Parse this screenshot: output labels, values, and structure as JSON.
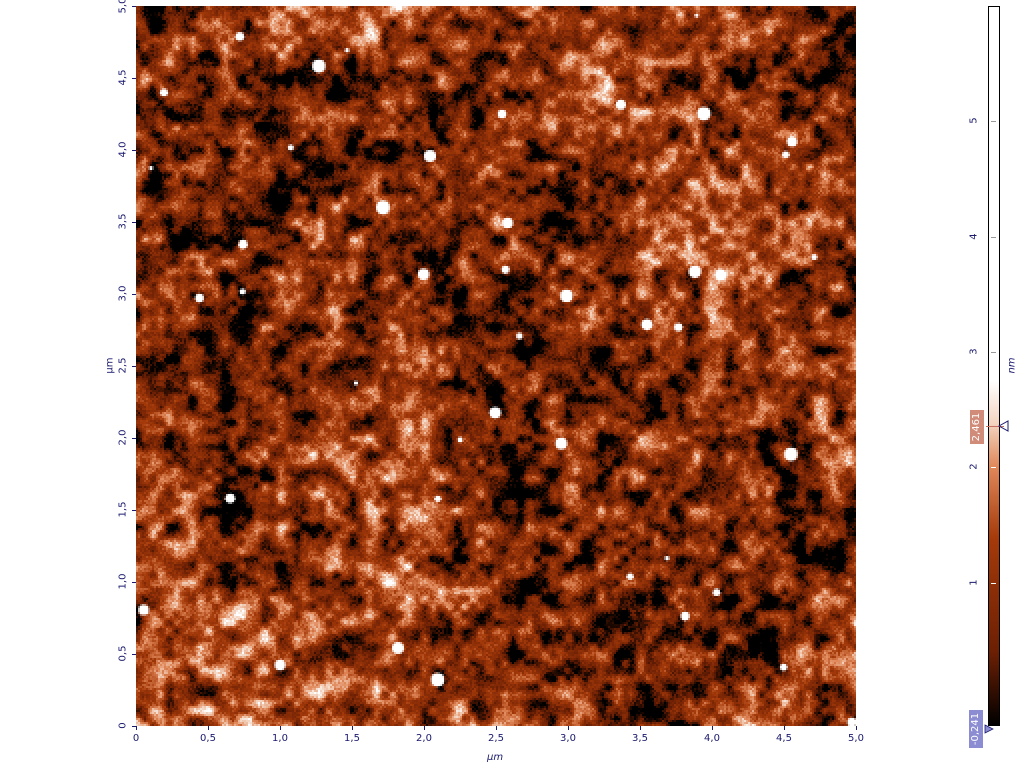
{
  "scan": {
    "x_axis": {
      "unit_label": "µm",
      "range": [
        0,
        5.0
      ],
      "ticks": [
        "0",
        "0,5",
        "1,0",
        "1,5",
        "2,0",
        "2,5",
        "3,0",
        "3,5",
        "4,0",
        "4,5",
        "5,0"
      ]
    },
    "y_axis": {
      "unit_label": "µm",
      "range": [
        0,
        5.0
      ],
      "ticks": [
        "0",
        "0,5",
        "1,0",
        "1,5",
        "2,0",
        "2,5",
        "3,0",
        "3,5",
        "4,0",
        "4,5",
        "5,0"
      ]
    },
    "colorscale": {
      "unit_label": "nm",
      "range": [
        -0.241,
        6.0
      ],
      "ticks": [
        "1",
        "2",
        "3",
        "4",
        "5"
      ],
      "marker_value": "2,461",
      "min_value": "-0,241",
      "colors": {
        "low": "#000000",
        "mid": "#a53a0a",
        "high": "#ffffff",
        "marker_badge": "#d08c78",
        "min_badge": "#8c8cd2",
        "axis_text": "#1a1a6e"
      }
    }
  }
}
